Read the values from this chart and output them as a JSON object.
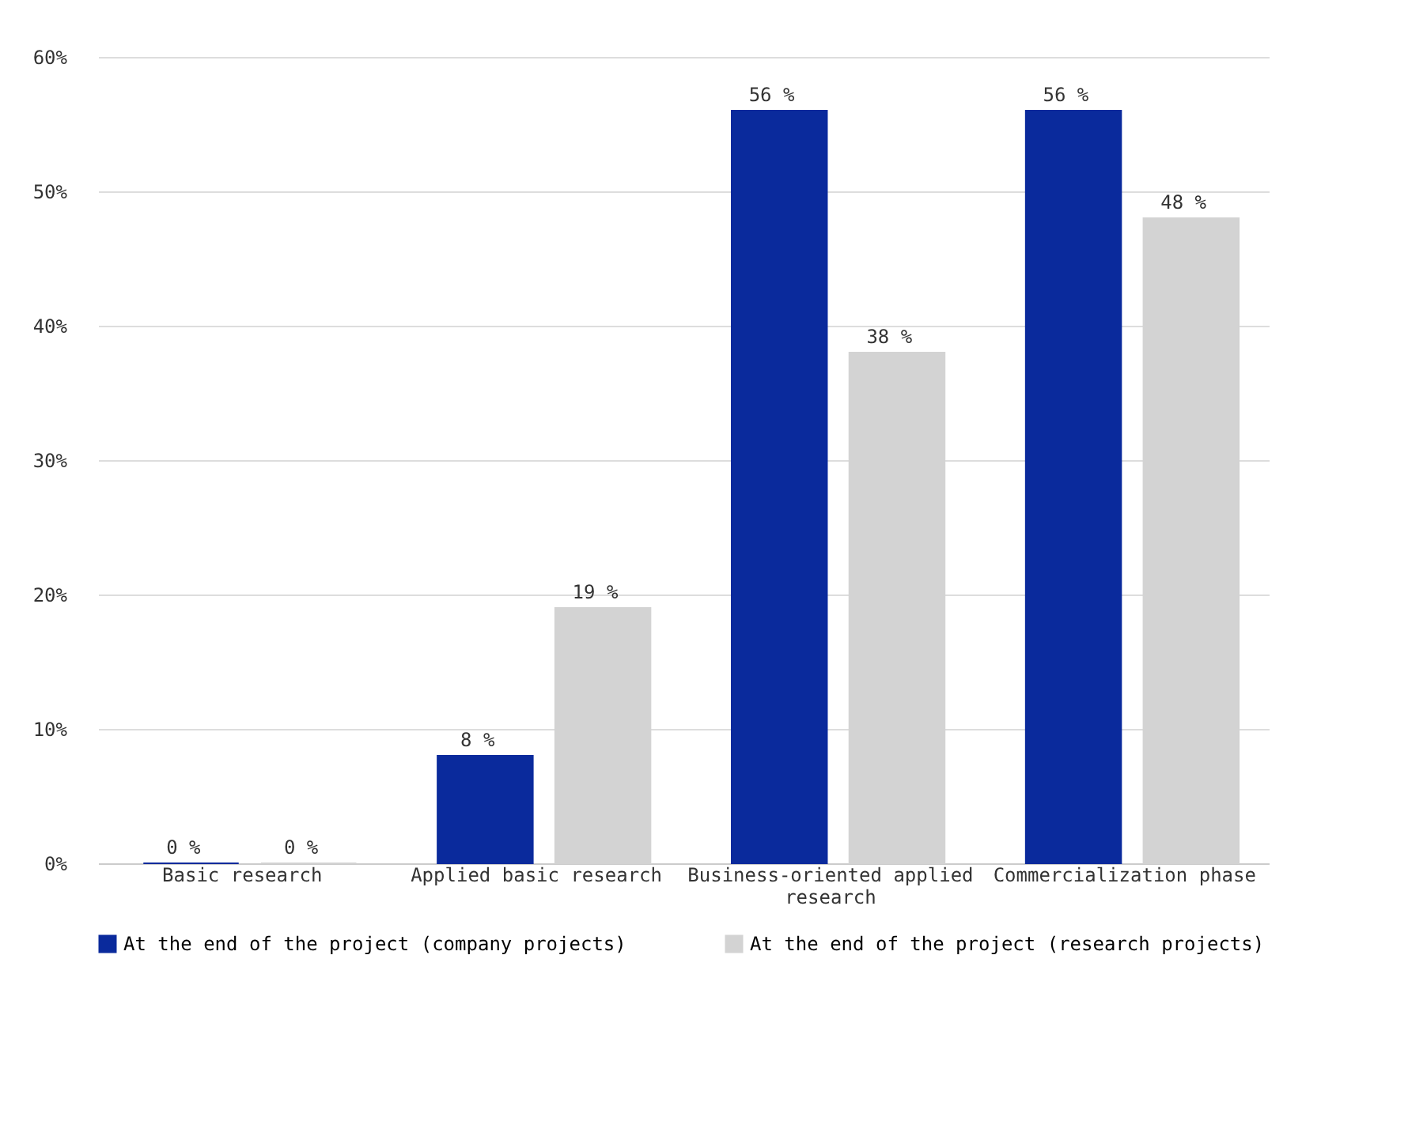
{
  "chart_data": {
    "type": "bar",
    "categories": [
      "Basic research",
      "Applied basic research",
      "Business-oriented applied research",
      "Commercialization phase"
    ],
    "series": [
      {
        "name": "At the end of the project (company projects)",
        "color": "#0a2a9c",
        "values": [
          0,
          8,
          56,
          56
        ],
        "value_labels": [
          "0 %",
          "8 %",
          "56 %",
          "56 %"
        ]
      },
      {
        "name": "At the end of the project (research projects)",
        "color": "#d3d3d3",
        "values": [
          0,
          19,
          38,
          48
        ],
        "value_labels": [
          "0 %",
          "19 %",
          "38 %",
          "48 %"
        ]
      }
    ],
    "ylim": [
      0,
      60
    ],
    "yticks": [
      {
        "value": 0,
        "label": "0%"
      },
      {
        "value": 10,
        "label": "10%"
      },
      {
        "value": 20,
        "label": "20%"
      },
      {
        "value": 30,
        "label": "30%"
      },
      {
        "value": 40,
        "label": "40%"
      },
      {
        "value": 50,
        "label": "50%"
      },
      {
        "value": 60,
        "label": "60%"
      }
    ],
    "grid": "y",
    "legend": "bottom"
  }
}
